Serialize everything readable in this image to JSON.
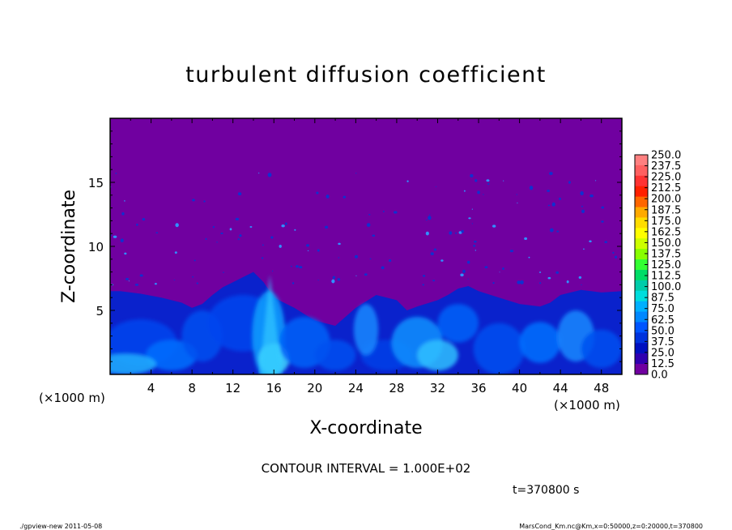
{
  "chart_data": {
    "type": "heatmap",
    "title": "turbulent diffusion coefficient",
    "xlabel": "X-coordinate",
    "ylabel": "Z-coordinate",
    "x_unit_left": "(×1000 m)",
    "x_unit_right": "(×1000 m)",
    "xlim": [
      0,
      50
    ],
    "ylim": [
      0,
      20
    ],
    "x_ticks": [
      "4",
      "8",
      "12",
      "16",
      "20",
      "24",
      "28",
      "32",
      "36",
      "40",
      "44",
      "48"
    ],
    "x_tick_values": [
      4,
      8,
      12,
      16,
      20,
      24,
      28,
      32,
      36,
      40,
      44,
      48
    ],
    "y_ticks": [
      "5",
      "10",
      "15"
    ],
    "y_tick_values": [
      5,
      10,
      15
    ],
    "colorbar": {
      "labels": [
        "250.0",
        "237.5",
        "225.0",
        "212.5",
        "200.0",
        "187.5",
        "175.0",
        "162.5",
        "150.0",
        "137.5",
        "125.0",
        "112.5",
        "100.0",
        "87.5",
        "75.0",
        "62.5",
        "50.0",
        "37.5",
        "25.0",
        "12.5",
        "0.0"
      ],
      "colors": [
        "#ff8080",
        "#ff6060",
        "#ff3333",
        "#ff2000",
        "#ff6600",
        "#ffaa00",
        "#ffdd00",
        "#ffff00",
        "#ccff00",
        "#88ff00",
        "#33ff33",
        "#00dd66",
        "#00ccaa",
        "#00dddd",
        "#00b0ff",
        "#0088ff",
        "#0055ff",
        "#0033dd",
        "#0010c0",
        "#3000b0",
        "#7000a0"
      ]
    },
    "background_color": "#7000a0",
    "boundary_layer_top_km": [
      6.5,
      6.5,
      6.4,
      6.3,
      6.0,
      5.6,
      5.2,
      5.5,
      6.2,
      6.8,
      7.2,
      7.6,
      8.0,
      7.2,
      6.0,
      5.2,
      4.2,
      3.8,
      5.2,
      6.2,
      5.8,
      5.0,
      5.3,
      5.8,
      6.2,
      6.7,
      6.9,
      6.5,
      6.0,
      5.5,
      5.3,
      5.6,
      6.2,
      6.6,
      6.5,
      6.4,
      6.5
    ],
    "boundary_layer_x_km": [
      0,
      1,
      2,
      3,
      5,
      7,
      8,
      9,
      10,
      11,
      12,
      13,
      14,
      15,
      16,
      18,
      20,
      22,
      24,
      26,
      28,
      29,
      30,
      32,
      33,
      34,
      35,
      36,
      38,
      40,
      42,
      43,
      44,
      46,
      47,
      48,
      50
    ]
  },
  "annotations": {
    "contour_interval": "CONTOUR INTERVAL = 1.000E+02",
    "time": "t=370800 s",
    "footer_left": "./gpview-new   2011-05-08",
    "footer_right": "MarsCond_Km.nc@Km,x=0:50000,z=0:20000,t=370800"
  }
}
